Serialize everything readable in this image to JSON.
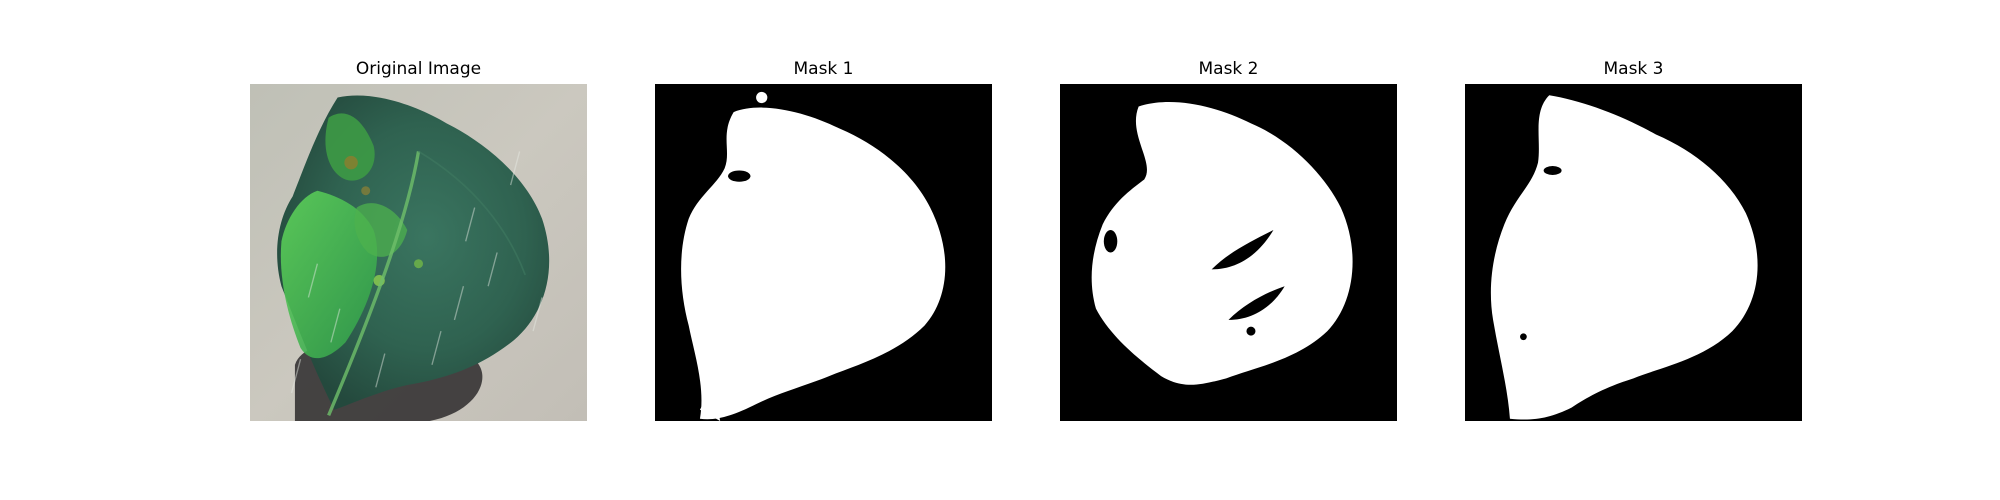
{
  "panels": [
    {
      "title": "Original Image"
    },
    {
      "title": "Mask 1"
    },
    {
      "title": "Mask 2"
    },
    {
      "title": "Mask 3"
    }
  ],
  "colors": {
    "mask_background": "#000000",
    "mask_foreground": "#ffffff",
    "photo_ground": "#c9c6bd",
    "leaf_dark": "#2f5e4a",
    "leaf_bright": "#3fbf55",
    "leaf_shadow": "#2e2a2a"
  }
}
